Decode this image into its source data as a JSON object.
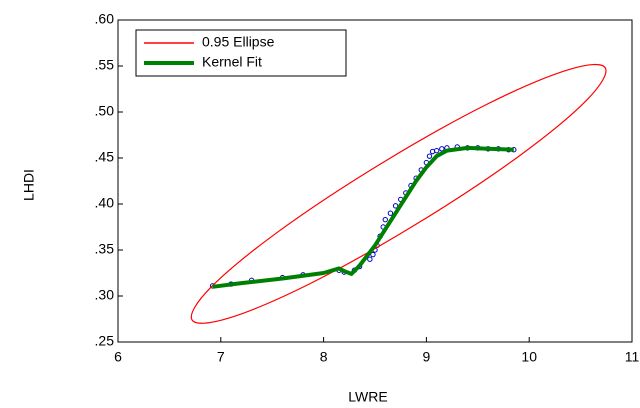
{
  "chart_data": {
    "type": "scatter",
    "x_label": "LWRE",
    "y_label": "LHDI",
    "xlim": [
      6,
      11
    ],
    "xticks": [
      6,
      7,
      8,
      9,
      10,
      11
    ],
    "ylim": [
      0.25,
      0.6
    ],
    "yticks": [
      {
        "value": 0.25,
        "label": ".25"
      },
      {
        "value": 0.3,
        "label": ".30"
      },
      {
        "value": 0.35,
        "label": ".35"
      },
      {
        "value": 0.4,
        "label": ".40"
      },
      {
        "value": 0.45,
        "label": ".45"
      },
      {
        "value": 0.5,
        "label": ".50"
      },
      {
        "value": 0.55,
        "label": ".55"
      },
      {
        "value": 0.6,
        "label": ".60"
      }
    ],
    "legend": "upper left",
    "series": [
      {
        "style": "markers",
        "color": "#0000cc",
        "x": [
          6.92,
          7.1,
          7.3,
          7.6,
          7.8,
          8.15,
          8.2,
          8.3,
          8.35,
          8.45,
          8.48,
          8.5,
          8.52,
          8.55,
          8.58,
          8.6,
          8.65,
          8.7,
          8.75,
          8.8,
          8.85,
          8.9,
          8.95,
          9.0,
          9.03,
          9.06,
          9.1,
          9.15,
          9.2,
          9.3,
          9.4,
          9.5,
          9.6,
          9.7,
          9.8,
          9.85
        ],
        "values": [
          0.311,
          0.313,
          0.317,
          0.32,
          0.323,
          0.328,
          0.326,
          0.328,
          0.332,
          0.34,
          0.345,
          0.35,
          0.355,
          0.365,
          0.375,
          0.383,
          0.39,
          0.398,
          0.405,
          0.412,
          0.42,
          0.428,
          0.437,
          0.445,
          0.452,
          0.457,
          0.458,
          0.46,
          0.461,
          0.462,
          0.461,
          0.461,
          0.46,
          0.46,
          0.459,
          0.459
        ]
      },
      {
        "name": "0.95 Ellipse",
        "style": "closed-curve",
        "color": "#ff0000",
        "x": [
          10.74,
          10.56,
          9.888,
          8.907,
          7.878,
          7.078,
          6.72,
          6.9,
          7.572,
          8.553,
          9.582,
          10.382
        ],
        "values": [
          0.548,
          0.513,
          0.451,
          0.3785,
          0.314,
          0.276,
          0.274,
          0.309,
          0.371,
          0.4435,
          0.508,
          0.546
        ]
      },
      {
        "name": "Kernel Fit",
        "style": "line",
        "color": "#008000",
        "x": [
          6.92,
          7.2,
          7.6,
          8.0,
          8.15,
          8.2,
          8.27,
          8.35,
          8.5,
          8.7,
          8.9,
          9.0,
          9.1,
          9.2,
          9.4,
          9.6,
          9.85
        ],
        "values": [
          0.31,
          0.314,
          0.319,
          0.325,
          0.33,
          0.327,
          0.324,
          0.333,
          0.355,
          0.39,
          0.425,
          0.44,
          0.452,
          0.458,
          0.461,
          0.46,
          0.459
        ]
      }
    ]
  }
}
